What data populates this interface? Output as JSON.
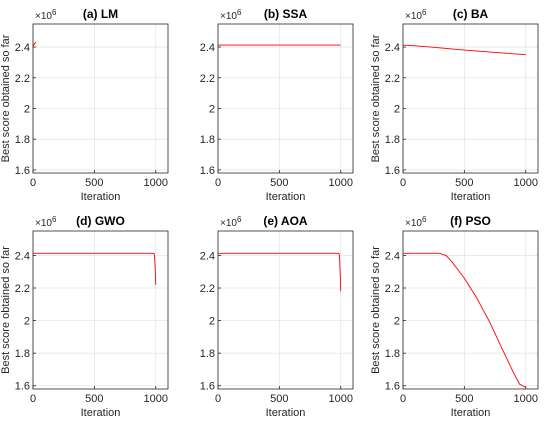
{
  "figure": {
    "title": ""
  },
  "chart_data": [
    {
      "type": "line",
      "title": "(a) LM",
      "xlabel": "Iteration",
      "ylabel": "Best score obtained so far",
      "y_exponent_base": "10",
      "y_exponent_power": "6",
      "xlim": [
        0,
        1100
      ],
      "ylim": [
        1.58,
        2.55
      ],
      "xticks": [
        0,
        500,
        1000
      ],
      "xtick_labels": [
        "0",
        "500",
        "1000"
      ],
      "yticks": [
        1.6,
        1.8,
        2.0,
        2.2,
        2.4
      ],
      "ytick_labels": [
        "1.6",
        "1.8",
        "2",
        "2.2",
        "2.4"
      ],
      "grid": true,
      "series": [
        {
          "color": "#ff0000",
          "x": [
            0,
            5,
            10,
            20,
            25
          ],
          "y": [
            2.4,
            2.41,
            2.42,
            2.43,
            2.43
          ]
        }
      ]
    },
    {
      "type": "line",
      "title": "(b) SSA",
      "xlabel": "Iteration",
      "ylabel": "",
      "y_exponent_base": "10",
      "y_exponent_power": "6",
      "xlim": [
        0,
        1100
      ],
      "ylim": [
        1.58,
        2.55
      ],
      "xticks": [
        0,
        500,
        1000
      ],
      "xtick_labels": [
        "0",
        "500",
        "1000"
      ],
      "yticks": [
        1.6,
        1.8,
        2.0,
        2.2,
        2.4
      ],
      "ytick_labels": [
        "1.6",
        "1.8",
        "2",
        "2.2",
        "2.4"
      ],
      "grid": true,
      "series": [
        {
          "color": "#ff0000",
          "x": [
            0,
            1000
          ],
          "y": [
            2.413,
            2.413
          ]
        }
      ]
    },
    {
      "type": "line",
      "title": "(c) BA",
      "xlabel": "Iteration",
      "ylabel": "Best score obtained so far",
      "y_exponent_base": "10",
      "y_exponent_power": "6",
      "xlim": [
        0,
        1100
      ],
      "ylim": [
        1.58,
        2.55
      ],
      "xticks": [
        0,
        500,
        1000
      ],
      "xtick_labels": [
        "0",
        "500",
        "1000"
      ],
      "yticks": [
        1.6,
        1.8,
        2.0,
        2.2,
        2.4
      ],
      "ytick_labels": [
        "1.6",
        "1.8",
        "2",
        "2.2",
        "2.4"
      ],
      "grid": true,
      "series": [
        {
          "color": "#ff0000",
          "x": [
            0,
            100,
            250,
            500,
            750,
            1000
          ],
          "y": [
            2.413,
            2.408,
            2.398,
            2.38,
            2.365,
            2.35
          ]
        }
      ]
    },
    {
      "type": "line",
      "title": "(d) GWO",
      "xlabel": "Iteration",
      "ylabel": "Best score obtained so far",
      "y_exponent_base": "10",
      "y_exponent_power": "6",
      "xlim": [
        0,
        1100
      ],
      "ylim": [
        1.58,
        2.55
      ],
      "xticks": [
        0,
        500,
        1000
      ],
      "xtick_labels": [
        "0",
        "500",
        "1000"
      ],
      "yticks": [
        1.6,
        1.8,
        2.0,
        2.2,
        2.4
      ],
      "ytick_labels": [
        "1.6",
        "1.8",
        "2",
        "2.2",
        "2.4"
      ],
      "grid": true,
      "series": [
        {
          "color": "#ff0000",
          "x": [
            0,
            985,
            990,
            995,
            1000
          ],
          "y": [
            2.413,
            2.413,
            2.4,
            2.33,
            2.22
          ]
        }
      ]
    },
    {
      "type": "line",
      "title": "(e) AOA",
      "xlabel": "Iteration",
      "ylabel": "",
      "y_exponent_base": "10",
      "y_exponent_power": "6",
      "xlim": [
        0,
        1100
      ],
      "ylim": [
        1.58,
        2.55
      ],
      "xticks": [
        0,
        500,
        1000
      ],
      "xtick_labels": [
        "0",
        "500",
        "1000"
      ],
      "yticks": [
        1.6,
        1.8,
        2.0,
        2.2,
        2.4
      ],
      "ytick_labels": [
        "1.6",
        "1.8",
        "2",
        "2.2",
        "2.4"
      ],
      "grid": true,
      "series": [
        {
          "color": "#ff0000",
          "x": [
            0,
            985,
            990,
            995,
            1000
          ],
          "y": [
            2.413,
            2.413,
            2.4,
            2.3,
            2.18
          ]
        }
      ]
    },
    {
      "type": "line",
      "title": "(f) PSO",
      "xlabel": "Iteration",
      "ylabel": "Best score obtained so far",
      "y_exponent_base": "10",
      "y_exponent_power": "6",
      "xlim": [
        0,
        1100
      ],
      "ylim": [
        1.58,
        2.55
      ],
      "xticks": [
        0,
        500,
        1000
      ],
      "xtick_labels": [
        "0",
        "500",
        "1000"
      ],
      "yticks": [
        1.6,
        1.8,
        2.0,
        2.2,
        2.4
      ],
      "ytick_labels": [
        "1.6",
        "1.8",
        "2",
        "2.2",
        "2.4"
      ],
      "grid": true,
      "series": [
        {
          "color": "#ff0000",
          "x": [
            0,
            300,
            350,
            400,
            450,
            500,
            550,
            600,
            650,
            700,
            750,
            800,
            850,
            900,
            950,
            1000
          ],
          "y": [
            2.413,
            2.413,
            2.4,
            2.36,
            2.31,
            2.26,
            2.2,
            2.14,
            2.07,
            2.0,
            1.92,
            1.84,
            1.76,
            1.68,
            1.61,
            1.59
          ]
        }
      ]
    }
  ]
}
